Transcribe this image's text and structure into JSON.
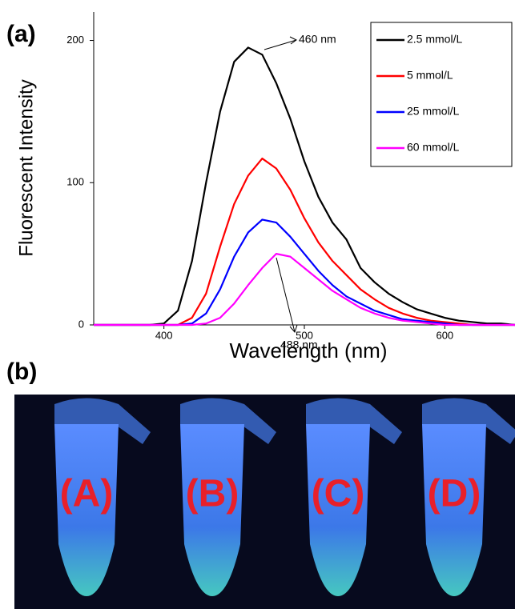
{
  "panels": {
    "a": "(a)",
    "b": "(b)"
  },
  "chart_data": {
    "type": "line",
    "xlabel": "Wavelength (nm)",
    "ylabel": "Fluorescent Intensity",
    "x": [
      350,
      360,
      370,
      380,
      390,
      400,
      410,
      420,
      430,
      440,
      450,
      460,
      470,
      480,
      490,
      500,
      510,
      520,
      530,
      540,
      550,
      560,
      570,
      580,
      590,
      600,
      610,
      620,
      630,
      640,
      650
    ],
    "series": [
      {
        "name": "2.5 mmol/L",
        "color": "#000000",
        "values": [
          0,
          0,
          0,
          0,
          0,
          1,
          10,
          45,
          100,
          150,
          185,
          195,
          190,
          170,
          145,
          115,
          90,
          72,
          60,
          40,
          30,
          22,
          16,
          11,
          8,
          5,
          3,
          2,
          1,
          1,
          0
        ]
      },
      {
        "name": "5 mmol/L",
        "color": "#ff0000",
        "values": [
          0,
          0,
          0,
          0,
          0,
          0,
          0,
          5,
          22,
          55,
          85,
          105,
          117,
          110,
          95,
          75,
          58,
          45,
          35,
          25,
          18,
          12,
          8,
          5,
          3,
          2,
          1,
          0,
          0,
          0,
          0
        ]
      },
      {
        "name": "25 mmol/L",
        "color": "#0000ff",
        "values": [
          0,
          0,
          0,
          0,
          0,
          0,
          0,
          1,
          8,
          25,
          48,
          65,
          74,
          72,
          62,
          50,
          38,
          28,
          20,
          15,
          10,
          7,
          4,
          3,
          2,
          1,
          0,
          0,
          0,
          0,
          0
        ]
      },
      {
        "name": "60 mmol/L",
        "color": "#ff00ff",
        "values": [
          0,
          0,
          0,
          0,
          0,
          0,
          0,
          0,
          1,
          5,
          15,
          28,
          40,
          50,
          48,
          40,
          32,
          24,
          18,
          12,
          8,
          5,
          3,
          2,
          1,
          0,
          0,
          0,
          0,
          0,
          0
        ]
      }
    ],
    "xlim": [
      350,
      650
    ],
    "xticks": [
      400,
      500,
      600
    ],
    "ylim": [
      0,
      220
    ],
    "yticks": [
      0,
      100,
      200
    ],
    "annotations": [
      "460 nm",
      "488 nm"
    ]
  },
  "photo": {
    "labels": [
      "(A)",
      "(B)",
      "(C)",
      "(D)"
    ]
  }
}
